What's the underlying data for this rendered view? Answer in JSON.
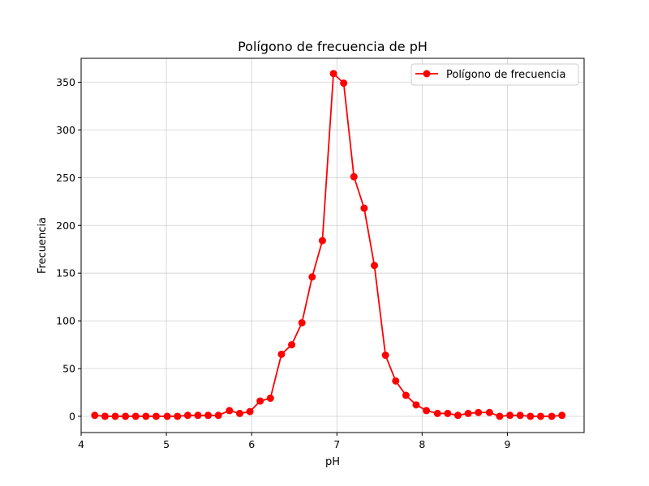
{
  "chart_data": {
    "type": "line",
    "title": "Polígono de frecuencia de pH",
    "xlabel": "pH",
    "ylabel": "Frecuencia",
    "xlim": [
      4.0,
      9.9
    ],
    "ylim": [
      -17,
      375
    ],
    "xticks": [
      4,
      5,
      6,
      7,
      8,
      9
    ],
    "yticks": [
      0,
      50,
      100,
      150,
      200,
      250,
      300,
      350
    ],
    "grid": true,
    "legend_position": "top-right",
    "series": [
      {
        "name": "Polígono de frecuencia",
        "color": "#ff0000",
        "marker": "circle",
        "x": [
          4.16,
          4.28,
          4.4,
          4.52,
          4.64,
          4.76,
          4.88,
          5.01,
          5.13,
          5.25,
          5.37,
          5.49,
          5.61,
          5.74,
          5.86,
          5.98,
          6.1,
          6.22,
          6.35,
          6.47,
          6.59,
          6.71,
          6.83,
          6.96,
          7.08,
          7.2,
          7.32,
          7.44,
          7.57,
          7.69,
          7.81,
          7.93,
          8.05,
          8.18,
          8.3,
          8.42,
          8.54,
          8.66,
          8.79,
          8.91,
          9.03,
          9.15,
          9.27,
          9.39,
          9.52,
          9.64
        ],
        "y": [
          1,
          0,
          0,
          0,
          0,
          0,
          0,
          0,
          0,
          1,
          1,
          1,
          1,
          6,
          3,
          5,
          16,
          19,
          65,
          75,
          98,
          146,
          184,
          359,
          349,
          251,
          218,
          158,
          64,
          37,
          22,
          12,
          6,
          3,
          3,
          1,
          3,
          4,
          4,
          0,
          1,
          1,
          0,
          0,
          0,
          1
        ]
      }
    ]
  }
}
